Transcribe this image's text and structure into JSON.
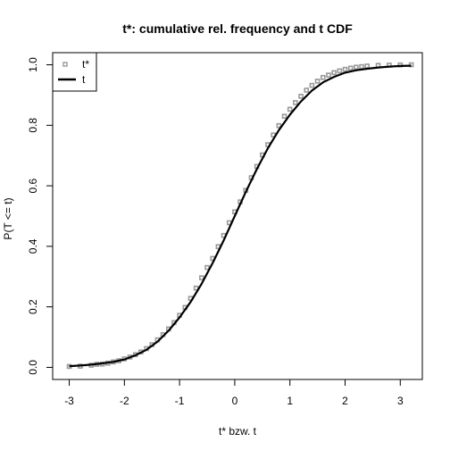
{
  "chart_data": {
    "type": "line",
    "title": "t*: cumulative rel. frequency and t CDF",
    "xlabel": "t* bzw. t",
    "ylabel": "P(T <= t)",
    "xlim": [
      -3.3,
      3.4
    ],
    "ylim": [
      -0.04,
      1.04
    ],
    "x_ticks": [
      -3,
      -2,
      -1,
      0,
      1,
      2,
      3
    ],
    "y_ticks": [
      0.0,
      0.2,
      0.4,
      0.6,
      0.8,
      1.0
    ],
    "x_tick_labels": [
      "-3",
      "-2",
      "-1",
      "0",
      "1",
      "2",
      "3"
    ],
    "y_tick_labels": [
      "0.0",
      "0.2",
      "0.4",
      "0.6",
      "0.8",
      "1.0"
    ],
    "grid": false,
    "legend": {
      "position": "top-left",
      "entries": [
        {
          "label": "t*",
          "style": "points",
          "color": "#999999"
        },
        {
          "label": "t",
          "style": "line",
          "color": "#000000"
        }
      ]
    },
    "series": [
      {
        "name": "t*",
        "style": "points",
        "color": "#999999",
        "x": [
          -3.0,
          -2.8,
          -2.6,
          -2.5,
          -2.4,
          -2.3,
          -2.2,
          -2.1,
          -2.0,
          -1.9,
          -1.8,
          -1.7,
          -1.6,
          -1.5,
          -1.4,
          -1.3,
          -1.2,
          -1.1,
          -1.0,
          -0.9,
          -0.8,
          -0.7,
          -0.6,
          -0.5,
          -0.4,
          -0.3,
          -0.2,
          -0.1,
          0.0,
          0.1,
          0.2,
          0.3,
          0.4,
          0.5,
          0.6,
          0.7,
          0.8,
          0.9,
          1.0,
          1.1,
          1.2,
          1.3,
          1.4,
          1.5,
          1.6,
          1.7,
          1.8,
          1.9,
          2.0,
          2.1,
          2.2,
          2.3,
          2.4,
          2.6,
          2.8,
          3.0,
          3.2
        ],
        "y": [
          0.003,
          0.004,
          0.007,
          0.01,
          0.011,
          0.014,
          0.018,
          0.022,
          0.028,
          0.034,
          0.042,
          0.051,
          0.062,
          0.075,
          0.091,
          0.108,
          0.127,
          0.148,
          0.172,
          0.198,
          0.228,
          0.262,
          0.296,
          0.33,
          0.36,
          0.399,
          0.436,
          0.478,
          0.514,
          0.547,
          0.585,
          0.627,
          0.664,
          0.702,
          0.736,
          0.768,
          0.799,
          0.83,
          0.853,
          0.875,
          0.896,
          0.916,
          0.932,
          0.946,
          0.958,
          0.966,
          0.974,
          0.98,
          0.985,
          0.989,
          0.992,
          0.994,
          0.996,
          0.998,
          0.999,
          0.9995,
          1.0
        ]
      },
      {
        "name": "t",
        "style": "line",
        "color": "#000000",
        "x": [
          -3.0,
          -2.8,
          -2.6,
          -2.4,
          -2.2,
          -2.0,
          -1.8,
          -1.6,
          -1.4,
          -1.2,
          -1.0,
          -0.8,
          -0.6,
          -0.4,
          -0.2,
          0.0,
          0.2,
          0.4,
          0.6,
          0.8,
          1.0,
          1.2,
          1.4,
          1.6,
          1.8,
          2.0,
          2.2,
          2.4,
          2.6,
          2.8,
          3.0,
          3.2
        ],
        "y": [
          0.004,
          0.006,
          0.009,
          0.013,
          0.018,
          0.026,
          0.04,
          0.058,
          0.085,
          0.121,
          0.165,
          0.216,
          0.276,
          0.345,
          0.42,
          0.5,
          0.58,
          0.655,
          0.724,
          0.784,
          0.835,
          0.879,
          0.915,
          0.942,
          0.96,
          0.974,
          0.982,
          0.987,
          0.991,
          0.994,
          0.996,
          0.997
        ]
      }
    ]
  }
}
